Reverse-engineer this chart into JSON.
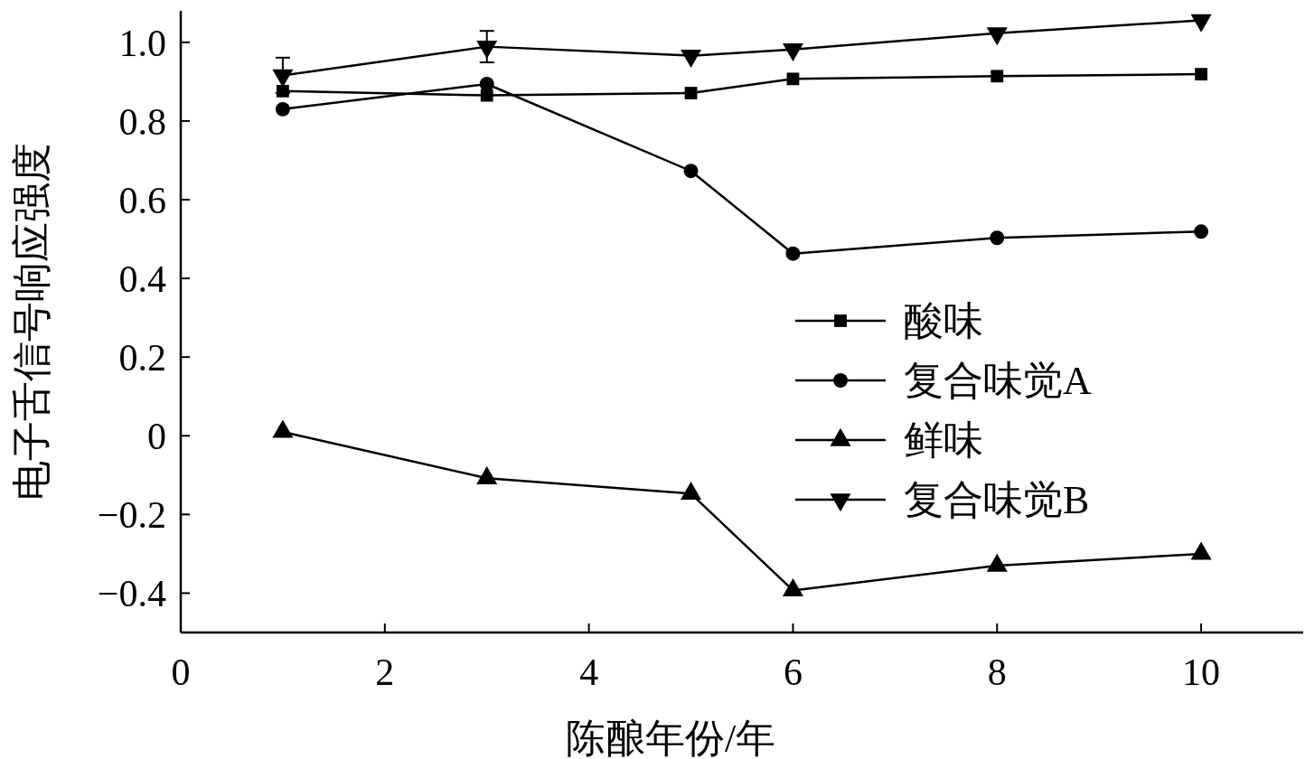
{
  "chart_data": {
    "type": "line",
    "xlabel": "陈酿年份/年",
    "ylabel": "电子舌信号响应强度",
    "xlim": [
      0,
      11
    ],
    "xticks": [
      0,
      2,
      4,
      6,
      8,
      10
    ],
    "ylim": [
      -0.5,
      1.08
    ],
    "yticks": [
      {
        "value": -0.4,
        "label": "−0.4"
      },
      {
        "value": -0.2,
        "label": "−0.2"
      },
      0,
      0.2,
      0.4,
      0.6,
      0.8,
      {
        "value": 1.0,
        "label": "1.0"
      }
    ],
    "x": [
      1,
      3,
      5,
      6,
      8,
      10
    ],
    "series": [
      {
        "name": "酸味",
        "color": "#000000",
        "marker": "square",
        "values": [
          0.876,
          0.865,
          0.871,
          0.907,
          0.914,
          0.919
        ]
      },
      {
        "name": "复合味觉A",
        "color": "#000000",
        "marker": "circle",
        "values": [
          0.83,
          0.894,
          0.673,
          0.463,
          0.503,
          0.519
        ]
      },
      {
        "name": "鲜味",
        "color": "#000000",
        "marker": "triangle",
        "values": [
          0.01,
          -0.108,
          -0.147,
          -0.393,
          -0.33,
          -0.3
        ]
      },
      {
        "name": "复合味觉B",
        "color": "#000000",
        "marker": "triangle-down",
        "values": [
          0.916,
          0.989,
          0.966,
          0.982,
          1.023,
          1.056
        ],
        "errors": [
          0.045,
          0.04,
          null,
          null,
          null,
          null
        ]
      }
    ],
    "legend": "right"
  }
}
